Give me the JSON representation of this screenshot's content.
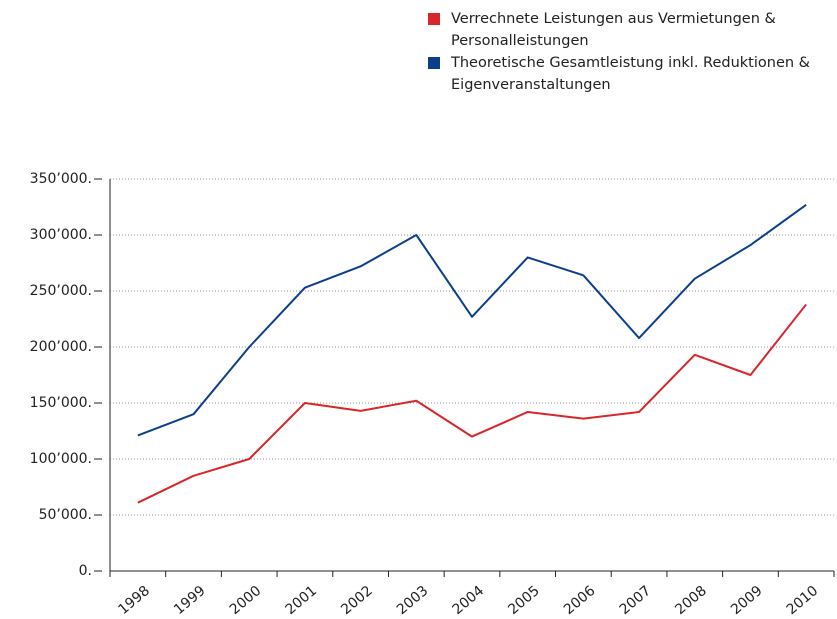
{
  "chart_data": {
    "type": "line",
    "categories": [
      "1998",
      "1999",
      "2000",
      "2001",
      "2002",
      "2003",
      "2004",
      "2005",
      "2006",
      "2007",
      "2008",
      "2009",
      "2010"
    ],
    "series": [
      {
        "name": "Verrechnete Leistungen aus Vermietungen & Personalleistungen",
        "color": "#d9262a",
        "values": [
          61000,
          85000,
          100000,
          150000,
          143000,
          152000,
          120000,
          142000,
          136000,
          142000,
          193000,
          175000,
          238000
        ]
      },
      {
        "name": "Theoretische Gesamtleistung inkl. Reduktionen & Eigenveranstaltungen",
        "color": "#0b3f8c",
        "values": [
          121000,
          140000,
          200000,
          253000,
          272000,
          300000,
          227000,
          280000,
          264000,
          208000,
          261000,
          291000,
          327000
        ]
      }
    ],
    "ylim": [
      0,
      350000
    ],
    "yticks": [
      {
        "value": 0,
        "label": "0."
      },
      {
        "value": 50000,
        "label": "50’000."
      },
      {
        "value": 100000,
        "label": "100’000."
      },
      {
        "value": 150000,
        "label": "150’000."
      },
      {
        "value": 200000,
        "label": "200’000."
      },
      {
        "value": 250000,
        "label": "250’000."
      },
      {
        "value": 300000,
        "label": "300’000."
      },
      {
        "value": 350000,
        "label": "350’000."
      }
    ],
    "grid": true
  }
}
